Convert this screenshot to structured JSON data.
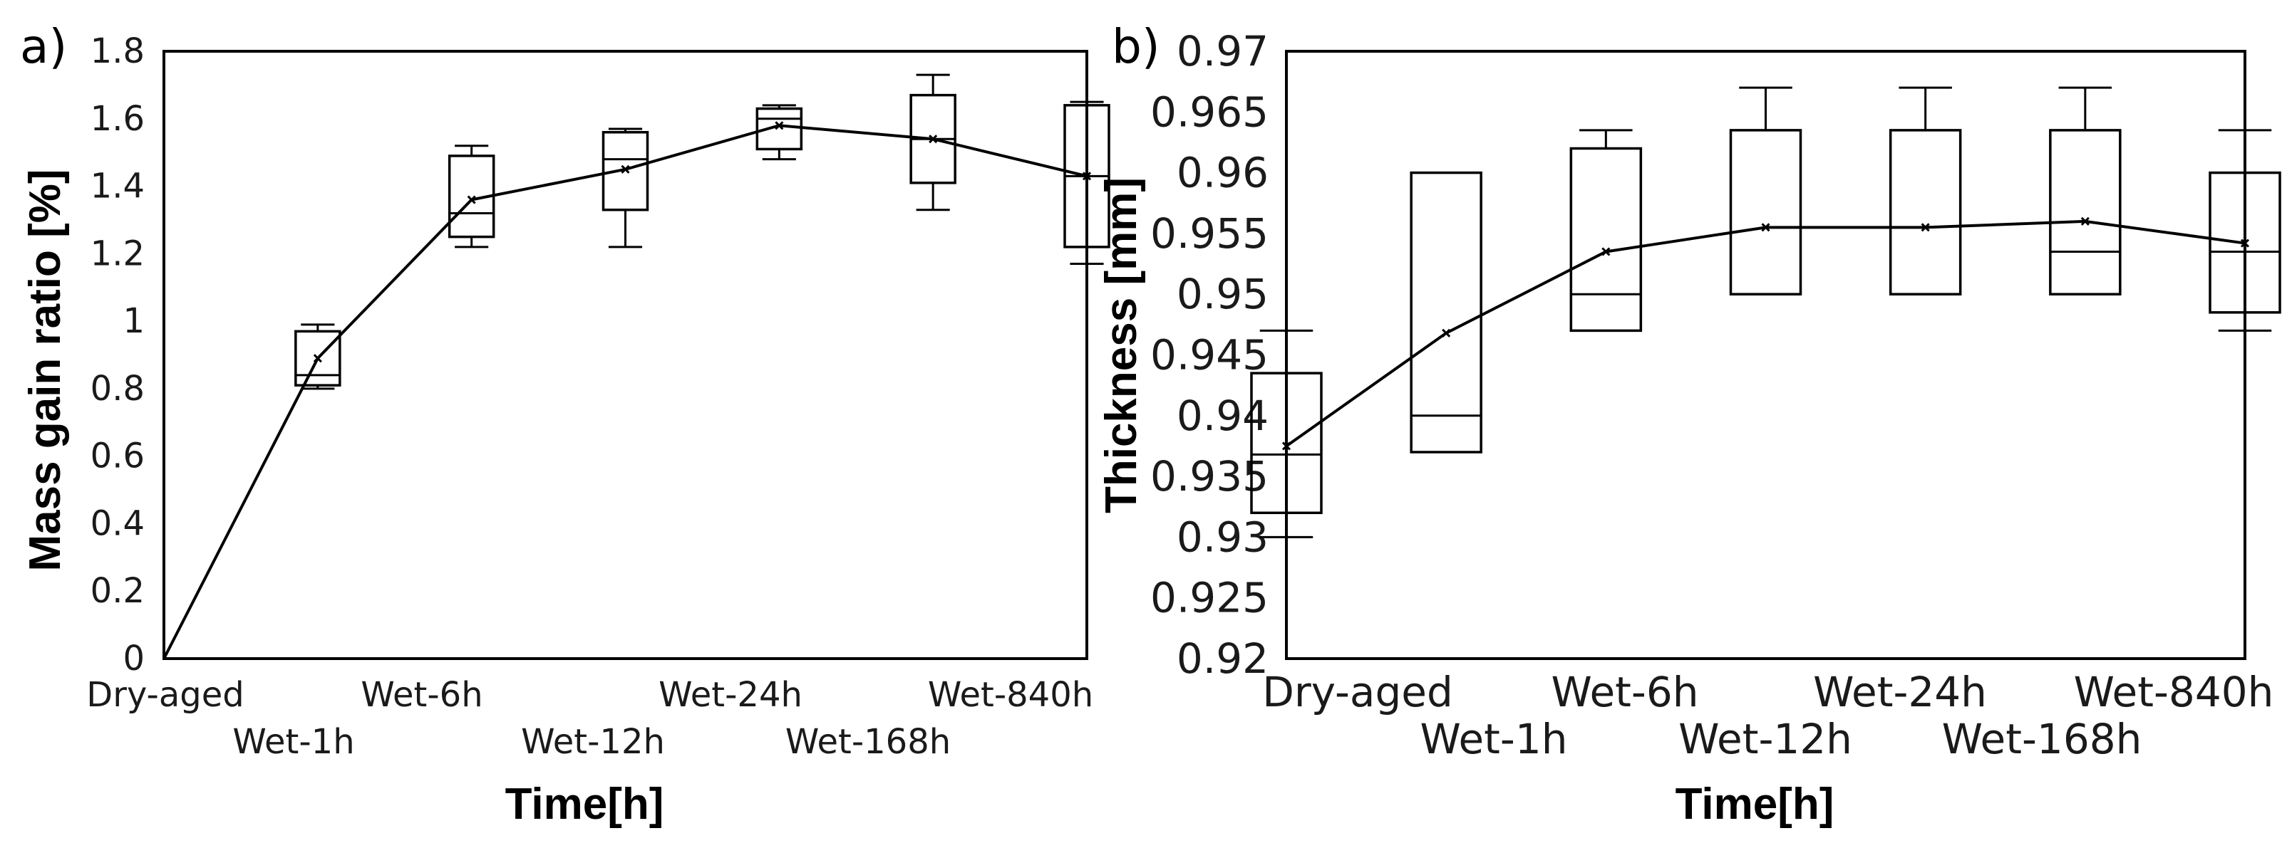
{
  "chart_data": [
    {
      "panel_label": "a)",
      "type": "box",
      "ylabel": "Mass gain ratio [%]",
      "xlabel": "Time[h]",
      "ylim": [
        0,
        1.8
      ],
      "yticks": [
        "0",
        "0.2",
        "0.4",
        "0.6",
        "0.8",
        "1",
        "1.2",
        "1.4",
        "1.6",
        "1.8"
      ],
      "categories": [
        "Dry-aged",
        "Wet-1h",
        "Wet-6h",
        "Wet-12h",
        "Wet-24h",
        "Wet-168h",
        "Wet-840h"
      ],
      "boxes": [
        null,
        {
          "min": 0.8,
          "q1": 0.81,
          "median": 0.84,
          "q3": 0.97,
          "max": 0.99
        },
        {
          "min": 1.22,
          "q1": 1.25,
          "median": 1.32,
          "q3": 1.49,
          "max": 1.52
        },
        {
          "min": 1.22,
          "q1": 1.33,
          "median": 1.48,
          "q3": 1.56,
          "max": 1.57
        },
        {
          "min": 1.48,
          "q1": 1.51,
          "median": 1.6,
          "q3": 1.63,
          "max": 1.64
        },
        {
          "min": 1.33,
          "q1": 1.41,
          "median": 1.54,
          "q3": 1.67,
          "max": 1.73
        },
        {
          "min": 1.17,
          "q1": 1.22,
          "median": 1.43,
          "q3": 1.64,
          "max": 1.65
        }
      ],
      "mean": [
        0,
        0.89,
        1.36,
        1.45,
        1.58,
        1.54,
        1.43
      ]
    },
    {
      "panel_label": "b)",
      "type": "box",
      "ylabel": "Thickness [mm]",
      "xlabel": "Time[h]",
      "ylim": [
        0.92,
        0.97
      ],
      "yticks": [
        "0.92",
        "0.925",
        "0.93",
        "0.935",
        "0.94",
        "0.945",
        "0.95",
        "0.955",
        "0.96",
        "0.965",
        "0.97"
      ],
      "categories": [
        "Dry-aged",
        "Wet-1h",
        "Wet-6h",
        "Wet-12h",
        "Wet-24h",
        "Wet-168h",
        "Wet-840h"
      ],
      "boxes": [
        {
          "min": 0.93,
          "q1": 0.932,
          "median": 0.9368,
          "q3": 0.9435,
          "max": 0.947
        },
        {
          "min": 0.937,
          "q1": 0.937,
          "median": 0.94,
          "q3": 0.96,
          "max": 0.96
        },
        {
          "min": 0.947,
          "q1": 0.947,
          "median": 0.95,
          "q3": 0.962,
          "max": 0.9635
        },
        {
          "min": 0.95,
          "q1": 0.95,
          "median": 0.95,
          "q3": 0.9635,
          "max": 0.967
        },
        {
          "min": 0.95,
          "q1": 0.95,
          "median": 0.95,
          "q3": 0.9635,
          "max": 0.967
        },
        {
          "min": 0.95,
          "q1": 0.95,
          "median": 0.9535,
          "q3": 0.9635,
          "max": 0.967
        },
        {
          "min": 0.947,
          "q1": 0.9485,
          "median": 0.9535,
          "q3": 0.96,
          "max": 0.9635
        }
      ],
      "mean": [
        0.9375,
        0.9468,
        0.9535,
        0.9555,
        0.9555,
        0.956,
        0.9542
      ]
    }
  ]
}
